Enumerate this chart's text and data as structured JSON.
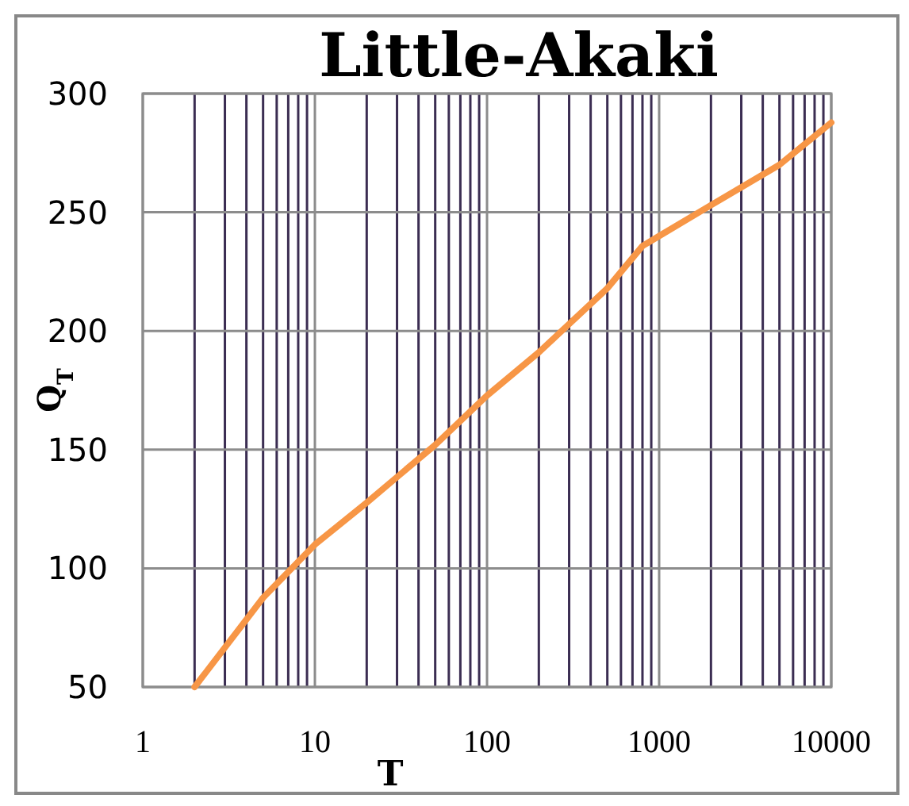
{
  "chart_data": {
    "type": "line",
    "title": "Little-Akaki",
    "xlabel": "T",
    "ylabel": "Q$_{T}$",
    "log": "x",
    "grid": true,
    "marker": "none",
    "line_style": "solid",
    "xlim": [
      1,
      10000
    ],
    "xticks": [
      1,
      10,
      100,
      1000,
      10000
    ],
    "ylim": [
      50,
      300
    ],
    "yticks": [
      50,
      100,
      150,
      200,
      250,
      300
    ],
    "series": [
      {
        "color": "#f79646",
        "x": [
          2,
          5,
          10,
          20,
          50,
          100,
          200,
          500,
          800,
          1000,
          2000,
          5000,
          10000
        ],
        "values": [
          50,
          87.6,
          110,
          127.7,
          152,
          172.8,
          191,
          218,
          235.8,
          240,
          253,
          270,
          287.8
        ]
      }
    ]
  }
}
